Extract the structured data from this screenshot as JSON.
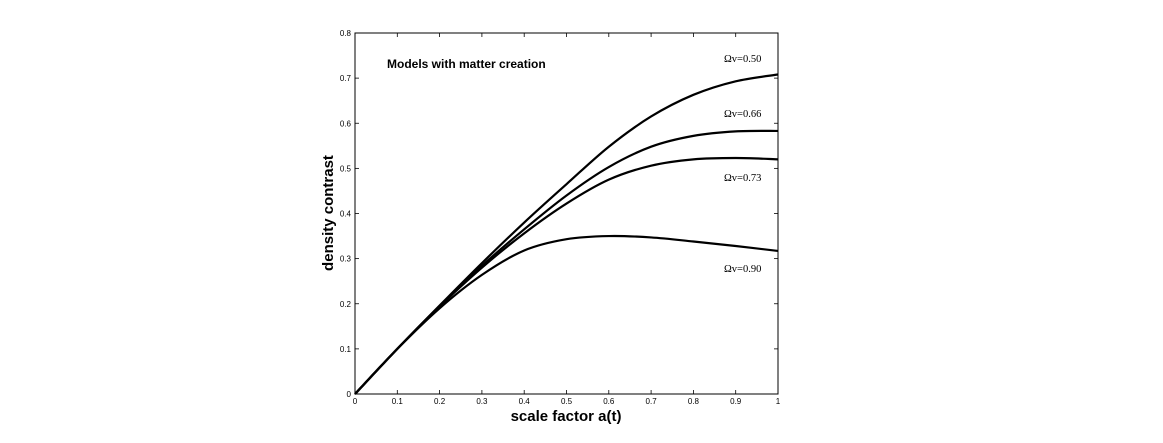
{
  "chart_data": {
    "type": "line",
    "title": "Models with matter creation",
    "xlabel": "scale factor a(t)",
    "ylabel": "density contrast",
    "xlim": [
      0,
      1
    ],
    "ylim": [
      0,
      0.8
    ],
    "xticks": [
      "0",
      "0.1",
      "0.2",
      "0.3",
      "0.4",
      "0.5",
      "0.6",
      "0.7",
      "0.8",
      "0.9",
      "1"
    ],
    "yticks": [
      "0",
      "0.1",
      "0.2",
      "0.3",
      "0.4",
      "0.5",
      "0.6",
      "0.7",
      "0.8"
    ],
    "grid": false,
    "x": [
      0,
      0.1,
      0.2,
      0.3,
      0.4,
      0.5,
      0.6,
      0.7,
      0.8,
      0.9,
      1.0
    ],
    "series": [
      {
        "name": "Ωv=0.50",
        "values": [
          0,
          0.1,
          0.196,
          0.29,
          0.38,
          0.465,
          0.548,
          0.615,
          0.663,
          0.693,
          0.708
        ]
      },
      {
        "name": "Ωv=0.66",
        "values": [
          0,
          0.1,
          0.195,
          0.284,
          0.365,
          0.44,
          0.503,
          0.548,
          0.572,
          0.582,
          0.583
        ]
      },
      {
        "name": "Ωv=0.73",
        "values": [
          0,
          0.1,
          0.194,
          0.28,
          0.356,
          0.422,
          0.475,
          0.506,
          0.52,
          0.523,
          0.52
        ]
      },
      {
        "name": "Ωv=0.90",
        "values": [
          0,
          0.1,
          0.19,
          0.264,
          0.318,
          0.343,
          0.35,
          0.347,
          0.338,
          0.328,
          0.317
        ]
      }
    ],
    "line_color": "#000000"
  }
}
